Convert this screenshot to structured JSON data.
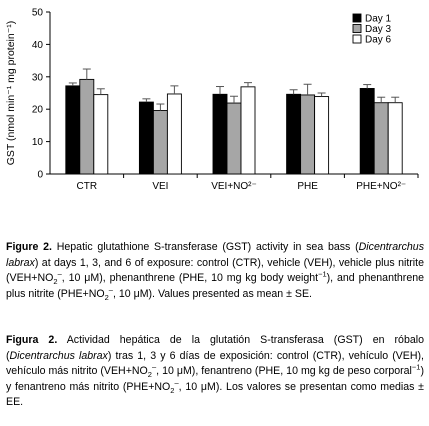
{
  "chart_data": {
    "type": "bar",
    "ylabel": "GST (nmol min⁻¹ mg protein⁻¹)",
    "ylim": [
      0,
      50
    ],
    "yticks": [
      0,
      10,
      20,
      30,
      40,
      50
    ],
    "grid": false,
    "legend_placement": "top-right",
    "categories": [
      "CTR",
      "VEI",
      "VEI+NO²⁻",
      "PHE",
      "PHE+NO²⁻"
    ],
    "series": [
      {
        "name": "Day 1",
        "color": "#000000",
        "values": [
          27.2,
          22.2,
          24.6,
          24.6,
          26.4
        ],
        "errors": [
          0.9,
          1.0,
          2.4,
          1.4,
          1.2
        ]
      },
      {
        "name": "Day 3",
        "color": "#a6a6a6",
        "values": [
          29.2,
          19.6,
          21.9,
          24.4,
          22.0
        ],
        "errors": [
          3.2,
          2.0,
          2.1,
          3.3,
          1.7
        ]
      },
      {
        "name": "Day 6",
        "color": "#ffffff",
        "values": [
          24.5,
          24.7,
          26.9,
          23.9,
          22.0
        ],
        "errors": [
          1.8,
          2.5,
          1.3,
          1.1,
          1.7
        ]
      }
    ]
  },
  "caption_en": {
    "label": "Figure 2.",
    "t1": " Hepatic glutathione S-transferase (GST) activity in sea bass (",
    "species": "Dicentrarchus labrax",
    "t2": ") at days 1, 3, and 6 of exposure: control (CTR), vehicle (VEH), vehicle plus nitrite (VEH+NO",
    "t3": ", 10 ",
    "mu": "μ",
    "t4": "M), phenanthrene (PHE, 10 mg kg body weight",
    "t5": "), and phenanthrene plus nitrite (PHE+NO",
    "t6": ", 10 ",
    "mu2": "μ",
    "t7": "M). Values presented as mean ± SE."
  },
  "caption_es": {
    "label": "Figura 2.",
    "t1": " Actividad hepática de la glutatión S-transferasa (GST) en róbalo (",
    "species": "Dicentrarchus labrax",
    "t2": ") tras 1, 3 y 6 días de exposición: control (CTR), vehículo (VEH), vehículo más nitrito (VEH+NO",
    "t3": ", 10 ",
    "mu": "μ",
    "t4": "M), fenantreno (PHE, 10 mg kg de peso corporal",
    "t5": ") y fenantreno más nitrito (PHE+NO",
    "t6": ", 10 ",
    "mu2": "μ",
    "t7": "M). Los valores se presentan como medias ± EE."
  },
  "sub2": "2",
  "supminus": "–",
  "supminus1": "−1"
}
